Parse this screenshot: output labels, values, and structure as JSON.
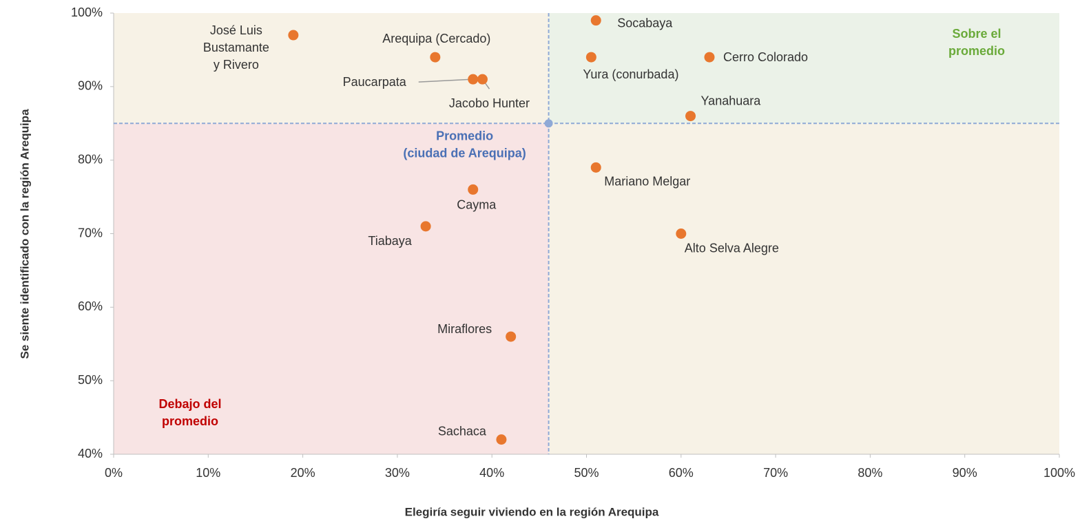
{
  "chart_data": {
    "type": "scatter",
    "x_label": "Elegiría seguir viviendo en la región Arequipa",
    "y_label": "Se siente identificado con la región Arequipa",
    "x": [
      19,
      34,
      38,
      39,
      51,
      50.5,
      63,
      61,
      51,
      38,
      33,
      60,
      42,
      41
    ],
    "y": [
      97,
      94,
      91,
      91,
      99,
      94,
      94,
      86,
      79,
      76,
      71,
      70,
      56,
      42
    ],
    "point_labels": [
      [
        "José Luis",
        "Bustamante",
        "y Rivero"
      ],
      [
        "Arequipa (Cercado)"
      ],
      [
        "Paucarpata"
      ],
      [
        "Jacobo Hunter"
      ],
      [
        "Socabaya"
      ],
      [
        "Yura (conurbada)"
      ],
      [
        "Cerro Colorado"
      ],
      [
        "Yanahuara"
      ],
      [
        "Mariano Melgar"
      ],
      [
        "Cayma"
      ],
      [
        "Tiabaya"
      ],
      [
        "Alto Selva Alegre"
      ],
      [
        "Miraflores"
      ],
      [
        "Sachaca"
      ]
    ],
    "color": "#e8772e",
    "average": {
      "x": 46,
      "y": 85,
      "label": [
        "Promedio",
        "(ciudad de Arequipa)"
      ],
      "color": "#8fa9d6"
    },
    "above_label": [
      "Sobre el",
      "promedio"
    ],
    "below_label": [
      "Debajo del",
      "promedio"
    ],
    "xlim": [
      0,
      100
    ],
    "ylim": [
      40,
      100
    ],
    "xticks": [
      {
        "value": 0,
        "label": "0%"
      },
      {
        "value": 10,
        "label": "10%"
      },
      {
        "value": 20,
        "label": "20%"
      },
      {
        "value": 30,
        "label": "30%"
      },
      {
        "value": 40,
        "label": "40%"
      },
      {
        "value": 50,
        "label": "50%"
      },
      {
        "value": 60,
        "label": "60%"
      },
      {
        "value": 70,
        "label": "70%"
      },
      {
        "value": 80,
        "label": "80%"
      },
      {
        "value": 90,
        "label": "90%"
      },
      {
        "value": 100,
        "label": "100%"
      }
    ],
    "yticks": [
      {
        "value": 40,
        "label": "40%"
      },
      {
        "value": 50,
        "label": "50%"
      },
      {
        "value": 60,
        "label": "60%"
      },
      {
        "value": 70,
        "label": "70%"
      },
      {
        "value": 80,
        "label": "80%"
      },
      {
        "value": 90,
        "label": "90%"
      },
      {
        "value": 100,
        "label": "100%"
      }
    ]
  }
}
